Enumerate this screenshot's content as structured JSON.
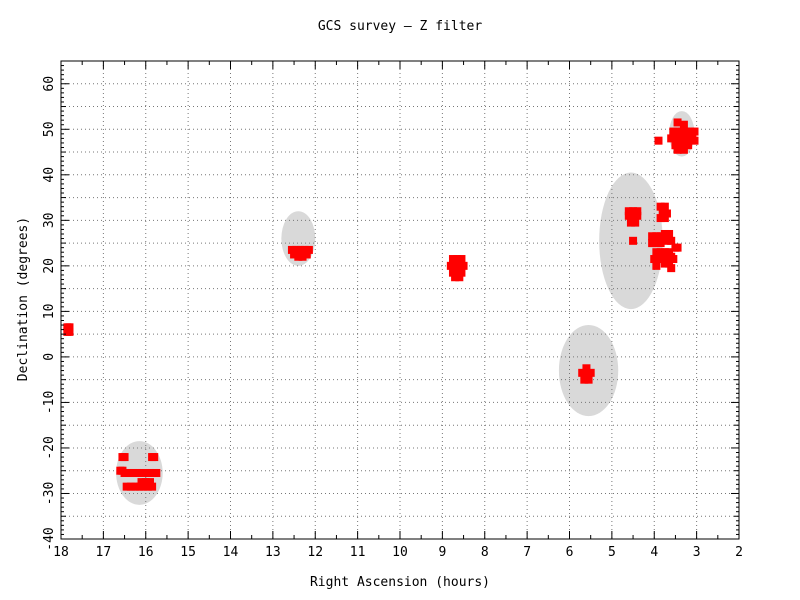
{
  "chart_data": {
    "type": "scatter",
    "title": "GCS survey — Z filter",
    "xlabel": "Right Ascension (hours)",
    "ylabel": "Declination (degrees)",
    "xlim": [
      18,
      2
    ],
    "ylim": [
      -40,
      65
    ],
    "x_ticks": [
      18,
      17,
      16,
      15,
      14,
      13,
      12,
      11,
      10,
      9,
      8,
      7,
      6,
      5,
      4,
      3,
      2
    ],
    "y_ticks": [
      -40,
      -30,
      -20,
      -10,
      0,
      10,
      20,
      30,
      40,
      50,
      60
    ],
    "x_minor_step": 0.5,
    "y_minor_step": 5,
    "grid": true,
    "colors": {
      "points": "#ff0000",
      "footprints": "#d9d9d9",
      "grid": "#777777",
      "axes": "#000000"
    },
    "footprints": [
      {
        "ra": 3.35,
        "dec": 49,
        "ra_halfwidth": 0.3,
        "dec_halfheight": 5
      },
      {
        "ra": 4.55,
        "dec": 25.5,
        "ra_halfwidth": 0.75,
        "dec_halfheight": 15
      },
      {
        "ra": 5.55,
        "dec": -3,
        "ra_halfwidth": 0.7,
        "dec_halfheight": 10
      },
      {
        "ra": 8.65,
        "dec": 19.5,
        "ra_halfwidth": 0.15,
        "dec_halfheight": 2.5
      },
      {
        "ra": 12.4,
        "dec": 26,
        "ra_halfwidth": 0.4,
        "dec_halfheight": 6
      },
      {
        "ra": 16.15,
        "dec": -25.5,
        "ra_halfwidth": 0.55,
        "dec_halfheight": 7
      }
    ],
    "series": [
      {
        "points": [
          [
            17.85,
            5.5
          ],
          [
            17.85,
            6.5
          ],
          [
            17.8,
            5.5
          ],
          [
            17.8,
            6.5
          ],
          [
            16.55,
            -22
          ],
          [
            16.5,
            -22
          ],
          [
            15.85,
            -22
          ],
          [
            15.8,
            -22
          ],
          [
            16.6,
            -25
          ],
          [
            16.55,
            -25
          ],
          [
            16.5,
            -25.5
          ],
          [
            16.4,
            -25.5
          ],
          [
            16.3,
            -25.5
          ],
          [
            16.2,
            -25.5
          ],
          [
            16.1,
            -25.5
          ],
          [
            16.0,
            -25.5
          ],
          [
            15.9,
            -25.5
          ],
          [
            15.8,
            -25.5
          ],
          [
            15.75,
            -25.5
          ],
          [
            16.45,
            -28.5
          ],
          [
            16.35,
            -28.5
          ],
          [
            16.25,
            -28.5
          ],
          [
            16.15,
            -28.5
          ],
          [
            16.05,
            -28.5
          ],
          [
            15.95,
            -28.5
          ],
          [
            15.85,
            -28.5
          ],
          [
            16.1,
            -27.5
          ],
          [
            16.0,
            -27.5
          ],
          [
            15.9,
            -27.5
          ],
          [
            12.55,
            23.5
          ],
          [
            12.45,
            23.5
          ],
          [
            12.35,
            23.5
          ],
          [
            12.25,
            23.5
          ],
          [
            12.15,
            23.5
          ],
          [
            12.5,
            22.5
          ],
          [
            12.4,
            22
          ],
          [
            12.3,
            22
          ],
          [
            12.2,
            22.5
          ],
          [
            8.75,
            21.5
          ],
          [
            8.65,
            21.5
          ],
          [
            8.55,
            21.5
          ],
          [
            8.8,
            20
          ],
          [
            8.7,
            20
          ],
          [
            8.6,
            20
          ],
          [
            8.5,
            20
          ],
          [
            8.75,
            18.5
          ],
          [
            8.65,
            18.5
          ],
          [
            8.55,
            18.5
          ],
          [
            8.7,
            17.5
          ],
          [
            8.6,
            17.5
          ],
          [
            5.7,
            -3.5
          ],
          [
            5.6,
            -3.5
          ],
          [
            5.5,
            -3.5
          ],
          [
            5.65,
            -5
          ],
          [
            5.55,
            -5
          ],
          [
            5.6,
            -2.5
          ],
          [
            4.6,
            32
          ],
          [
            4.5,
            32
          ],
          [
            4.4,
            32
          ],
          [
            4.6,
            31
          ],
          [
            4.5,
            31
          ],
          [
            4.4,
            31
          ],
          [
            4.55,
            29.5
          ],
          [
            4.45,
            29.5
          ],
          [
            4.5,
            25.5
          ],
          [
            3.85,
            33
          ],
          [
            3.75,
            33
          ],
          [
            3.8,
            31.5
          ],
          [
            3.7,
            31.5
          ],
          [
            3.85,
            30.5
          ],
          [
            3.75,
            30.5
          ],
          [
            4.05,
            26.5
          ],
          [
            3.95,
            26.5
          ],
          [
            3.85,
            26.5
          ],
          [
            4.05,
            25
          ],
          [
            3.95,
            25
          ],
          [
            3.85,
            25
          ],
          [
            3.75,
            27
          ],
          [
            3.65,
            27
          ],
          [
            3.7,
            25.5
          ],
          [
            3.6,
            25.5
          ],
          [
            3.5,
            24
          ],
          [
            3.45,
            24
          ],
          [
            3.95,
            23
          ],
          [
            3.85,
            23
          ],
          [
            3.75,
            23
          ],
          [
            3.65,
            23
          ],
          [
            4.0,
            21.5
          ],
          [
            3.9,
            21.5
          ],
          [
            3.8,
            22
          ],
          [
            3.7,
            22
          ],
          [
            3.6,
            22
          ],
          [
            3.55,
            21.5
          ],
          [
            3.95,
            20
          ],
          [
            3.75,
            20.5
          ],
          [
            3.65,
            20.5
          ],
          [
            3.6,
            19.5
          ],
          [
            3.45,
            51.5
          ],
          [
            3.3,
            51
          ],
          [
            3.55,
            49.5
          ],
          [
            3.45,
            49.5
          ],
          [
            3.35,
            49.5
          ],
          [
            3.25,
            49.5
          ],
          [
            3.15,
            49.5
          ],
          [
            3.05,
            49.5
          ],
          [
            3.6,
            48
          ],
          [
            3.5,
            48
          ],
          [
            3.4,
            48
          ],
          [
            3.3,
            48
          ],
          [
            3.2,
            48
          ],
          [
            3.1,
            48
          ],
          [
            3.9,
            47.5
          ],
          [
            3.5,
            46.5
          ],
          [
            3.35,
            46.5
          ],
          [
            3.2,
            46.5
          ],
          [
            3.05,
            47.5
          ],
          [
            3.45,
            45.5
          ],
          [
            3.3,
            45.5
          ]
        ]
      }
    ]
  }
}
